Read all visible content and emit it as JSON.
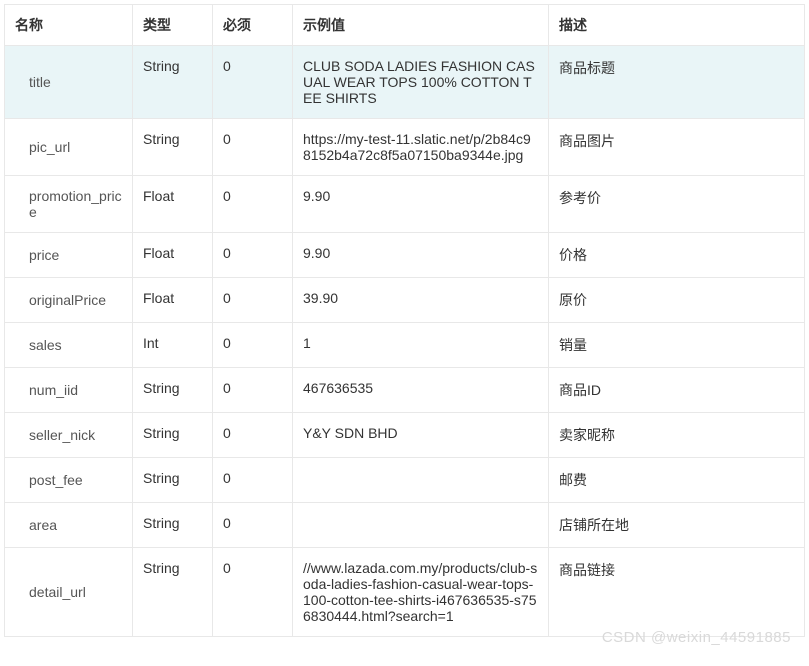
{
  "columns": {
    "name": "名称",
    "type": "类型",
    "required": "必须",
    "example": "示例值",
    "desc": "描述"
  },
  "rows": [
    {
      "name": "title",
      "type": "String",
      "required": "0",
      "example": "CLUB SODA LADIES FASHION CASUAL WEAR TOPS 100% COTTON TEE SHIRTS",
      "desc": "商品标题",
      "highlight": true
    },
    {
      "name": "pic_url",
      "type": "String",
      "required": "0",
      "example": "https://my-test-11.slatic.net/p/2b84c98152b4a72c8f5a07150ba9344e.jpg",
      "desc": "商品图片"
    },
    {
      "name": "promotion_price",
      "type": "Float",
      "required": "0",
      "example": "9.90",
      "desc": "参考价"
    },
    {
      "name": "price",
      "type": "Float",
      "required": "0",
      "example": "9.90",
      "desc": "价格"
    },
    {
      "name": "originalPrice",
      "type": "Float",
      "required": "0",
      "example": "39.90",
      "desc": "原价"
    },
    {
      "name": "sales",
      "type": "Int",
      "required": "0",
      "example": "1",
      "desc": "销量"
    },
    {
      "name": "num_iid",
      "type": "String",
      "required": "0",
      "example": "467636535",
      "desc": "商品ID"
    },
    {
      "name": "seller_nick",
      "type": "String",
      "required": "0",
      "example": "Y&Y SDN BHD",
      "desc": "卖家昵称"
    },
    {
      "name": "post_fee",
      "type": "String",
      "required": "0",
      "example": "",
      "desc": "邮费"
    },
    {
      "name": "area",
      "type": "String",
      "required": "0",
      "example": "",
      "desc": "店铺所在地"
    },
    {
      "name": "detail_url",
      "type": "String",
      "required": "0",
      "example": "//www.lazada.com.my/products/club-soda-ladies-fashion-casual-wear-tops-100-cotton-tee-shirts-i467636535-s756830444.html?search=1",
      "desc": "商品链接"
    }
  ],
  "watermark": "CSDN @weixin_44591885"
}
